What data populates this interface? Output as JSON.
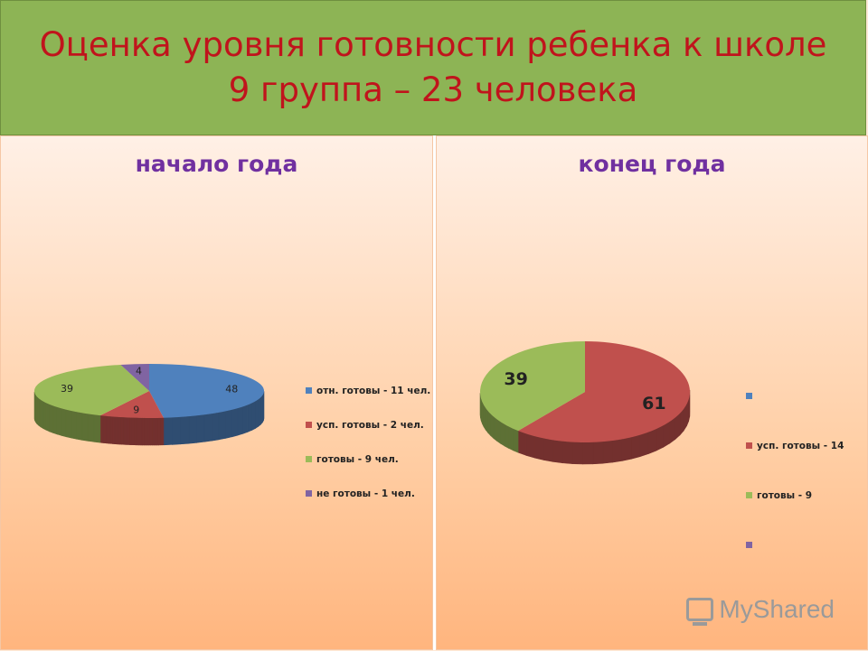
{
  "header": {
    "title_line1": "Оценка уровня готовности ребенка к школе",
    "title_line2": "9 группа – 23 человека"
  },
  "chart_data": [
    {
      "type": "pie",
      "title": "начало года",
      "legend_position": "right",
      "slices": [
        {
          "label": "отн. готовы - 11 чел.",
          "value": 48,
          "color": "#4f81bd"
        },
        {
          "label": "усп. готовы - 2 чел.",
          "value": 9,
          "color": "#c0504d"
        },
        {
          "label": "готовы - 9 чел.",
          "value": 39,
          "color": "#9bbb59"
        },
        {
          "label": "не готовы - 1 чел.",
          "value": 4,
          "color": "#8064a2"
        }
      ]
    },
    {
      "type": "pie",
      "title": "конец года",
      "legend_position": "right",
      "slices": [
        {
          "label": "",
          "value": 0,
          "color": "#4f81bd"
        },
        {
          "label": "усп. готовы - 14",
          "value": 61,
          "color": "#c0504d"
        },
        {
          "label": "готовы - 9",
          "value": 39,
          "color": "#9bbb59"
        },
        {
          "label": "",
          "value": 0,
          "color": "#8064a2"
        }
      ]
    }
  ],
  "watermark": {
    "text": "MyShared",
    "icon": "presentation-board-icon"
  }
}
